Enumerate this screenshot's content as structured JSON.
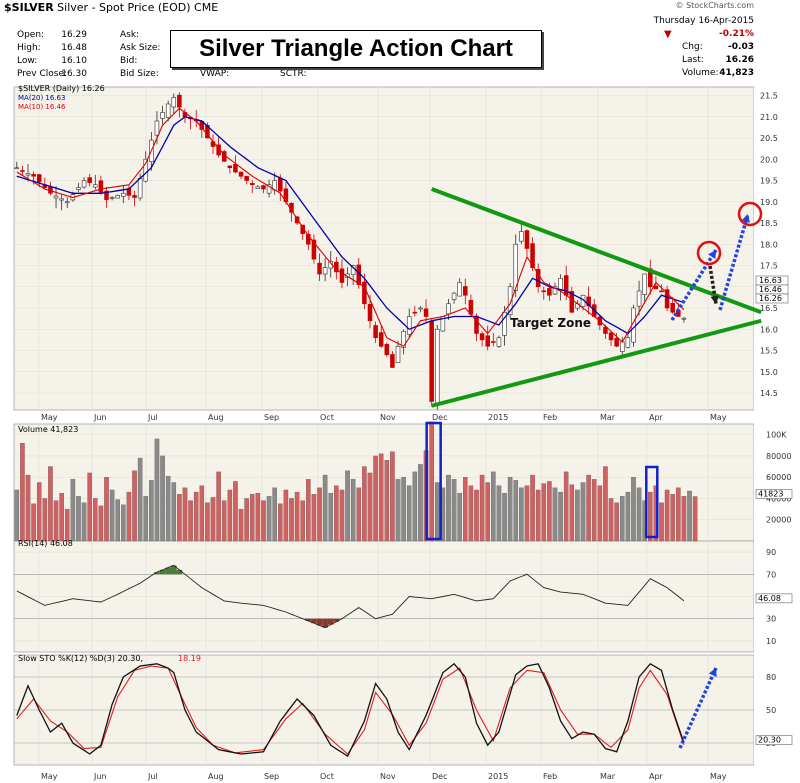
{
  "header": {
    "symbol": "$SILVER",
    "description": "Silver - Spot Price (EOD)",
    "exchange": "CME",
    "watermark": "© StockCharts.com",
    "date": "Thursday 16-Apr-2015"
  },
  "info_left": [
    {
      "label": "Open:",
      "value": "16.29"
    },
    {
      "label": "High:",
      "value": "16.48"
    },
    {
      "label": "Low:",
      "value": "16.10"
    },
    {
      "label": "Prev Close:",
      "value": "16.30"
    }
  ],
  "info_mid": [
    "Ask:",
    "Ask Size:",
    "Bid:",
    "Bid Size:"
  ],
  "info_extra": [
    "VWAP:",
    "SCTR:"
  ],
  "info_right": [
    {
      "label": "",
      "value": "-0.21%"
    },
    {
      "label": "Chg:",
      "value": "-0.03"
    },
    {
      "label": "Last:",
      "value": "16.26"
    },
    {
      "label": "Volume:",
      "value": "41,823"
    }
  ],
  "banner_title": "Silver Triangle Action Chart",
  "colors": {
    "up_candle": "#2e2e2e",
    "down_candle": "#cc0000",
    "ma20": "#0000aa",
    "ma10": "#dd0000",
    "triangle": "#119911",
    "arrow_blue": "#2244dd",
    "panel_bg": "#f5f2ea",
    "rsi_overbought": "#4c7a3a",
    "rsi_oversold": "#8a3a2a"
  },
  "chart_data": [
    {
      "type": "candlestick",
      "legend": [
        "$SILVER (Daily) 16.26",
        "MA(20) 16.63",
        "MA(10) 16.46"
      ],
      "x_ticks": [
        "May",
        "Jun",
        "Jul",
        "Aug",
        "Sep",
        "Oct",
        "Nov",
        "Dec",
        "2015",
        "Feb",
        "Mar",
        "Apr",
        "May"
      ],
      "y_ticks": [
        "21.5",
        "21.0",
        "20.5",
        "20.0",
        "19.5",
        "19.0",
        "18.5",
        "18.0",
        "17.5",
        "17.0",
        "16.5",
        "16.0",
        "15.5",
        "15.0",
        "14.5"
      ],
      "ylim": [
        14.1,
        21.7
      ],
      "price_labels": [
        "16.63",
        "16.46",
        "16.26"
      ],
      "annotation": "Target Zone",
      "close_path": [
        [
          0,
          19.8
        ],
        [
          3,
          19.6
        ],
        [
          6,
          19.2
        ],
        [
          9,
          19.0
        ],
        [
          12,
          19.5
        ],
        [
          14,
          19.4
        ],
        [
          16,
          19.05
        ],
        [
          19,
          19.2
        ],
        [
          21,
          19.1
        ],
        [
          23,
          20.0
        ],
        [
          25,
          20.9
        ],
        [
          26,
          21.1
        ],
        [
          27,
          21.3
        ],
        [
          28,
          21.45
        ],
        [
          30,
          21.0
        ],
        [
          32,
          20.9
        ],
        [
          34,
          20.5
        ],
        [
          36,
          20.1
        ],
        [
          38,
          19.8
        ],
        [
          40,
          19.6
        ],
        [
          42,
          19.4
        ],
        [
          44,
          19.3
        ],
        [
          46,
          19.5
        ],
        [
          48,
          19.0
        ],
        [
          50,
          18.5
        ],
        [
          52,
          18.0
        ],
        [
          54,
          17.3
        ],
        [
          56,
          17.6
        ],
        [
          58,
          17.1
        ],
        [
          60,
          17.5
        ],
        [
          62,
          16.6
        ],
        [
          64,
          15.8
        ],
        [
          66,
          15.4
        ],
        [
          67,
          15.1
        ],
        [
          68,
          15.6
        ],
        [
          70,
          16.3
        ],
        [
          72,
          16.5
        ],
        [
          73,
          16.3
        ],
        [
          74,
          14.3
        ],
        [
          75,
          16.0
        ],
        [
          77,
          16.6
        ],
        [
          79,
          17.1
        ],
        [
          80,
          16.8
        ],
        [
          82,
          15.9
        ],
        [
          84,
          15.6
        ],
        [
          86,
          15.8
        ],
        [
          87,
          16.4
        ],
        [
          88,
          17.0
        ],
        [
          89,
          18.0
        ],
        [
          90,
          18.3
        ],
        [
          91,
          17.9
        ],
        [
          93,
          17.0
        ],
        [
          95,
          16.8
        ],
        [
          97,
          17.2
        ],
        [
          99,
          16.4
        ],
        [
          101,
          16.8
        ],
        [
          103,
          16.3
        ],
        [
          105,
          15.9
        ],
        [
          107,
          15.6
        ],
        [
          109,
          15.8
        ],
        [
          110,
          16.5
        ],
        [
          112,
          17.3
        ],
        [
          113,
          17.0
        ],
        [
          115,
          16.9
        ],
        [
          116,
          16.5
        ],
        [
          118,
          16.3
        ],
        [
          119,
          16.26
        ]
      ],
      "ma20_path": [
        [
          0,
          19.6
        ],
        [
          5,
          19.4
        ],
        [
          10,
          19.2
        ],
        [
          15,
          19.2
        ],
        [
          20,
          19.3
        ],
        [
          24,
          19.8
        ],
        [
          28,
          20.8
        ],
        [
          30,
          21.0
        ],
        [
          33,
          20.9
        ],
        [
          38,
          20.3
        ],
        [
          43,
          19.8
        ],
        [
          48,
          19.5
        ],
        [
          53,
          18.6
        ],
        [
          58,
          17.7
        ],
        [
          62,
          17.2
        ],
        [
          66,
          16.5
        ],
        [
          70,
          16.0
        ],
        [
          74,
          16.2
        ],
        [
          78,
          16.3
        ],
        [
          82,
          16.3
        ],
        [
          86,
          16.1
        ],
        [
          89,
          16.6
        ],
        [
          92,
          17.2
        ],
        [
          95,
          17.0
        ],
        [
          98,
          16.9
        ],
        [
          101,
          16.7
        ],
        [
          105,
          16.2
        ],
        [
          109,
          15.9
        ],
        [
          112,
          16.3
        ],
        [
          115,
          16.8
        ],
        [
          119,
          16.63
        ]
      ],
      "ma10_path": [
        [
          0,
          19.7
        ],
        [
          5,
          19.3
        ],
        [
          10,
          19.1
        ],
        [
          15,
          19.3
        ],
        [
          20,
          19.4
        ],
        [
          23,
          19.9
        ],
        [
          26,
          20.8
        ],
        [
          29,
          21.2
        ],
        [
          32,
          20.9
        ],
        [
          37,
          20.1
        ],
        [
          42,
          19.6
        ],
        [
          47,
          19.2
        ],
        [
          52,
          18.2
        ],
        [
          57,
          17.4
        ],
        [
          62,
          17.0
        ],
        [
          66,
          15.8
        ],
        [
          69,
          15.6
        ],
        [
          72,
          16.2
        ],
        [
          76,
          16.3
        ],
        [
          80,
          16.5
        ],
        [
          84,
          15.9
        ],
        [
          88,
          16.6
        ],
        [
          91,
          17.7
        ],
        [
          94,
          17.1
        ],
        [
          97,
          16.9
        ],
        [
          100,
          16.6
        ],
        [
          104,
          16.2
        ],
        [
          108,
          15.7
        ],
        [
          111,
          16.4
        ],
        [
          114,
          17.1
        ],
        [
          119,
          16.46
        ]
      ],
      "triangle_upper": [
        [
          74,
          19.3
        ],
        [
          131,
          16.4
        ]
      ],
      "triangle_lower": [
        [
          74,
          14.2
        ],
        [
          131,
          16.2
        ]
      ],
      "n_sessions": 132
    },
    {
      "type": "bar",
      "legend": "Volume 41,823",
      "y_ticks": [
        "100K",
        "80000",
        "60000",
        "40000",
        "20000"
      ],
      "ylim": [
        0,
        110000
      ],
      "last_value": "41823",
      "values": [
        48000,
        92000,
        62000,
        35000,
        55000,
        40000,
        70000,
        38000,
        45000,
        30000,
        58000,
        42000,
        36000,
        64000,
        40000,
        33000,
        60000,
        48000,
        39000,
        34000,
        46000,
        66000,
        78000,
        42000,
        57000,
        96000,
        80000,
        61000,
        55000,
        44000,
        50000,
        38000,
        46000,
        52000,
        36000,
        41000,
        65000,
        38000,
        48000,
        56000,
        30000,
        40000,
        44000,
        45000,
        38000,
        42000,
        50000,
        35000,
        48000,
        40000,
        46000,
        38000,
        58000,
        44000,
        50000,
        62000,
        45000,
        52000,
        48000,
        66000,
        58000,
        50000,
        70000,
        64000,
        80000,
        82000,
        76000,
        84000,
        58000,
        60000,
        52000,
        65000,
        72000,
        85000,
        112000,
        55000,
        50000,
        62000,
        58000,
        45000,
        60000,
        52000,
        48000,
        62000,
        55000,
        65000,
        52000,
        45000,
        60000,
        57000,
        50000,
        52000,
        62000,
        48000,
        54000,
        56000,
        50000,
        46000,
        65000,
        53000,
        48000,
        55000,
        62000,
        58000,
        52000,
        70000,
        40000,
        36000,
        42000,
        46000,
        60000,
        50000,
        38000,
        46000,
        52000,
        36000,
        48000,
        44000,
        50000,
        42000,
        47000,
        41823
      ]
    },
    {
      "type": "line",
      "legend": "RSI(14) 46.08",
      "y_ticks": [
        "90",
        "70",
        "50",
        "30",
        "10"
      ],
      "ylim": [
        0,
        100
      ],
      "last_value": "46.08",
      "values_path": [
        [
          0,
          55
        ],
        [
          5,
          42
        ],
        [
          10,
          48
        ],
        [
          15,
          45
        ],
        [
          18,
          52
        ],
        [
          22,
          62
        ],
        [
          25,
          72
        ],
        [
          28,
          78
        ],
        [
          31,
          66
        ],
        [
          33,
          58
        ],
        [
          37,
          46
        ],
        [
          40,
          44
        ],
        [
          44,
          42
        ],
        [
          48,
          36
        ],
        [
          52,
          28
        ],
        [
          55,
          22
        ],
        [
          58,
          30
        ],
        [
          61,
          40
        ],
        [
          64,
          30
        ],
        [
          67,
          34
        ],
        [
          70,
          50
        ],
        [
          74,
          48
        ],
        [
          78,
          52
        ],
        [
          82,
          46
        ],
        [
          85,
          48
        ],
        [
          88,
          64
        ],
        [
          91,
          70
        ],
        [
          94,
          58
        ],
        [
          97,
          54
        ],
        [
          101,
          52
        ],
        [
          105,
          44
        ],
        [
          109,
          42
        ],
        [
          113,
          66
        ],
        [
          116,
          58
        ],
        [
          119,
          46.08
        ]
      ]
    },
    {
      "type": "line",
      "legend": "Slow STO %K(12) %D(3) 20.30, 18.19",
      "y_ticks": [
        "80",
        "50",
        "20"
      ],
      "ylim": [
        0,
        100
      ],
      "last_values": [
        "20.30",
        "18.19"
      ],
      "k_path": [
        [
          0,
          45
        ],
        [
          2,
          72
        ],
        [
          4,
          50
        ],
        [
          6,
          30
        ],
        [
          8,
          38
        ],
        [
          10,
          20
        ],
        [
          13,
          10
        ],
        [
          15,
          18
        ],
        [
          17,
          55
        ],
        [
          19,
          80
        ],
        [
          22,
          90
        ],
        [
          25,
          92
        ],
        [
          27,
          88
        ],
        [
          28,
          84
        ],
        [
          30,
          50
        ],
        [
          32,
          30
        ],
        [
          34,
          22
        ],
        [
          36,
          14
        ],
        [
          40,
          10
        ],
        [
          44,
          12
        ],
        [
          47,
          40
        ],
        [
          50,
          60
        ],
        [
          53,
          45
        ],
        [
          56,
          18
        ],
        [
          59,
          8
        ],
        [
          62,
          40
        ],
        [
          64,
          74
        ],
        [
          66,
          60
        ],
        [
          68,
          30
        ],
        [
          70,
          14
        ],
        [
          73,
          45
        ],
        [
          76,
          84
        ],
        [
          78,
          92
        ],
        [
          80,
          80
        ],
        [
          82,
          38
        ],
        [
          84,
          18
        ],
        [
          86,
          30
        ],
        [
          89,
          82
        ],
        [
          91,
          90
        ],
        [
          93,
          92
        ],
        [
          95,
          70
        ],
        [
          97,
          40
        ],
        [
          99,
          24
        ],
        [
          101,
          30
        ],
        [
          103,
          28
        ],
        [
          105,
          15
        ],
        [
          107,
          12
        ],
        [
          109,
          40
        ],
        [
          111,
          80
        ],
        [
          113,
          92
        ],
        [
          115,
          86
        ],
        [
          117,
          50
        ],
        [
          119,
          20.3
        ]
      ],
      "d_path": [
        [
          0,
          42
        ],
        [
          3,
          60
        ],
        [
          6,
          40
        ],
        [
          9,
          30
        ],
        [
          12,
          15
        ],
        [
          15,
          16
        ],
        [
          18,
          62
        ],
        [
          21,
          86
        ],
        [
          24,
          90
        ],
        [
          27,
          88
        ],
        [
          29,
          66
        ],
        [
          32,
          34
        ],
        [
          35,
          18
        ],
        [
          39,
          11
        ],
        [
          44,
          14
        ],
        [
          48,
          42
        ],
        [
          51,
          56
        ],
        [
          55,
          28
        ],
        [
          59,
          10
        ],
        [
          62,
          32
        ],
        [
          64,
          66
        ],
        [
          67,
          46
        ],
        [
          70,
          18
        ],
        [
          73,
          38
        ],
        [
          76,
          78
        ],
        [
          79,
          88
        ],
        [
          82,
          50
        ],
        [
          85,
          22
        ],
        [
          88,
          70
        ],
        [
          91,
          86
        ],
        [
          94,
          84
        ],
        [
          97,
          50
        ],
        [
          100,
          28
        ],
        [
          103,
          28
        ],
        [
          106,
          16
        ],
        [
          109,
          32
        ],
        [
          111,
          70
        ],
        [
          113,
          86
        ],
        [
          116,
          64
        ],
        [
          119,
          18.19
        ]
      ]
    }
  ]
}
